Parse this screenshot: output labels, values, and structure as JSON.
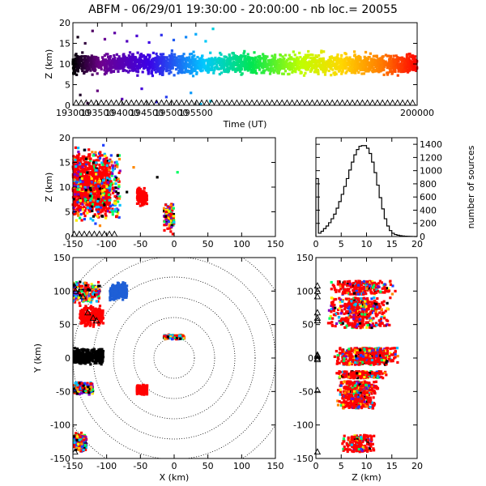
{
  "title": "ABFM - 06/29/01 19:30:00 - 20:00:00 - nb loc.=  20055",
  "chart_data": [
    {
      "id": "time_height",
      "type": "scatter",
      "xlabel": "Time (UT)",
      "ylabel": "Z (km)",
      "xlim": [
        193000,
        200000
      ],
      "ylim": [
        0,
        20
      ],
      "xticks": [
        193000,
        193500,
        194000,
        194500,
        195000,
        195500,
        200000
      ],
      "xtick_labels": [
        "193000",
        "193500",
        "194000",
        "194500",
        "195000",
        "195500",
        "200000"
      ],
      "yticks": [
        0,
        5,
        10,
        15,
        20
      ],
      "color_scale": "rainbow by time",
      "bulk_z_range": [
        7,
        13
      ],
      "points": [
        {
          "x": 193100,
          "y": 16.5
        },
        {
          "x": 193250,
          "y": 15
        },
        {
          "x": 193400,
          "y": 18
        },
        {
          "x": 193650,
          "y": 16
        },
        {
          "x": 193850,
          "y": 17.5
        },
        {
          "x": 194100,
          "y": 15.5
        },
        {
          "x": 194300,
          "y": 16.8
        },
        {
          "x": 194550,
          "y": 15.2
        },
        {
          "x": 194800,
          "y": 17
        },
        {
          "x": 195050,
          "y": 15.8
        },
        {
          "x": 195300,
          "y": 16.5
        },
        {
          "x": 195500,
          "y": 17.2
        },
        {
          "x": 195700,
          "y": 15.5
        },
        {
          "x": 195850,
          "y": 18.5
        },
        {
          "x": 193150,
          "y": 2.5
        },
        {
          "x": 193500,
          "y": 3.5
        },
        {
          "x": 194000,
          "y": 1.5
        },
        {
          "x": 194400,
          "y": 4
        },
        {
          "x": 194900,
          "y": 2
        },
        {
          "x": 195400,
          "y": 3
        },
        {
          "x": 195800,
          "y": 1
        },
        {
          "x": 193300,
          "y": 0.5
        },
        {
          "x": 194700,
          "y": 0.8
        },
        {
          "x": 195600,
          "y": 0.3
        }
      ]
    },
    {
      "id": "x_height",
      "type": "scatter",
      "xlabel": "",
      "ylabel": "Z (km)",
      "xlim": [
        -150,
        150
      ],
      "ylim": [
        0,
        20
      ],
      "xticks": [
        -150,
        -100,
        -50,
        0,
        50,
        100,
        150
      ],
      "yticks": [
        0,
        5,
        10,
        15,
        20
      ],
      "clusters": [
        {
          "x": [
            -150,
            -95
          ],
          "z": [
            4,
            17
          ],
          "color": "#ff0000"
        },
        {
          "x": [
            -150,
            -80
          ],
          "z": [
            2,
            19
          ],
          "color": "mixed"
        },
        {
          "x": [
            -55,
            -40
          ],
          "z": [
            6,
            10
          ],
          "color": "#ff0000"
        },
        {
          "x": [
            -15,
            0
          ],
          "z": [
            1,
            7
          ],
          "color": "mixed"
        }
      ],
      "points": [
        {
          "x": -5,
          "y": 1
        },
        {
          "x": -2,
          "y": 0.5
        },
        {
          "x": -8,
          "y": 3
        },
        {
          "x": -12,
          "y": 5
        },
        {
          "x": -25,
          "y": 12
        },
        {
          "x": -60,
          "y": 14
        },
        {
          "x": -70,
          "y": 9
        },
        {
          "x": 5,
          "y": 13
        }
      ]
    },
    {
      "id": "altitude_histogram",
      "type": "line",
      "xlabel": "",
      "ylabel": "number of sources",
      "xlim": [
        0,
        20
      ],
      "ylim": [
        0,
        1500
      ],
      "xticks": [
        0,
        5,
        10,
        15,
        20
      ],
      "yticks": [
        0,
        200,
        400,
        600,
        800,
        1000,
        1200,
        1400
      ],
      "x": [
        0,
        0.5,
        1,
        1.5,
        2,
        2.5,
        3,
        3.5,
        4,
        4.5,
        5,
        5.5,
        6,
        6.5,
        7,
        7.5,
        8,
        8.5,
        9,
        9.5,
        10,
        10.5,
        11,
        11.5,
        12,
        12.5,
        13,
        13.5,
        14,
        14.5,
        15,
        15.5,
        16,
        16.5,
        17,
        17.5,
        18,
        18.5,
        19,
        19.5
      ],
      "values": [
        880,
        50,
        80,
        120,
        160,
        210,
        270,
        340,
        430,
        530,
        640,
        760,
        880,
        1010,
        1130,
        1240,
        1320,
        1370,
        1380,
        1380,
        1340,
        1260,
        1130,
        970,
        780,
        590,
        420,
        270,
        160,
        90,
        50,
        30,
        20,
        12,
        8,
        5,
        3,
        2,
        1,
        0
      ]
    },
    {
      "id": "plan_view",
      "type": "scatter",
      "xlabel": "X (km)",
      "ylabel": "Y (km)",
      "xlim": [
        -150,
        150
      ],
      "ylim": [
        -150,
        150
      ],
      "xticks": [
        -150,
        -100,
        -50,
        0,
        50,
        100,
        150
      ],
      "yticks": [
        -150,
        -100,
        -50,
        0,
        50,
        100,
        150
      ],
      "range_rings_km": [
        30,
        60,
        90,
        120,
        150,
        180,
        210
      ],
      "clusters": [
        {
          "x": [
            -150,
            -105
          ],
          "y": [
            -10,
            15
          ],
          "color": "#000000"
        },
        {
          "x": [
            -150,
            -110
          ],
          "y": [
            80,
            115
          ],
          "color": "mixed"
        },
        {
          "x": [
            -140,
            -105
          ],
          "y": [
            45,
            80
          ],
          "color": "#ff0000"
        },
        {
          "x": [
            -95,
            -70
          ],
          "y": [
            85,
            115
          ],
          "color": "#1e5fd6"
        },
        {
          "x": [
            -150,
            -120
          ],
          "y": [
            -55,
            -35
          ],
          "color": "mixed"
        },
        {
          "x": [
            -150,
            -130
          ],
          "y": [
            -140,
            -110
          ],
          "color": "mixed"
        },
        {
          "x": [
            -55,
            -40
          ],
          "y": [
            -55,
            -40
          ],
          "color": "#ff0000"
        },
        {
          "x": [
            -15,
            15
          ],
          "y": [
            28,
            35
          ],
          "color": "mixed"
        }
      ]
    },
    {
      "id": "z_y_view",
      "type": "scatter",
      "xlabel": "Z (km)",
      "ylabel": "",
      "xlim": [
        0,
        20
      ],
      "ylim": [
        -150,
        150
      ],
      "xticks": [
        0,
        5,
        10,
        15,
        20
      ],
      "yticks": [
        -150,
        -100,
        -50,
        0,
        50,
        100,
        150
      ],
      "bands": [
        {
          "z": [
            2,
            16
          ],
          "y": [
            95,
            115
          ]
        },
        {
          "z": [
            2,
            15
          ],
          "y": [
            70,
            90
          ]
        },
        {
          "z": [
            2,
            15
          ],
          "y": [
            45,
            70
          ]
        },
        {
          "z": [
            3,
            17
          ],
          "y": [
            -10,
            15
          ]
        },
        {
          "z": [
            4,
            14
          ],
          "y": [
            -30,
            -20
          ]
        },
        {
          "z": [
            4,
            13
          ],
          "y": [
            -55,
            -35
          ]
        },
        {
          "z": [
            4,
            12
          ],
          "y": [
            -75,
            -55
          ]
        },
        {
          "z": [
            5,
            12
          ],
          "y": [
            -140,
            -115
          ]
        }
      ]
    }
  ]
}
